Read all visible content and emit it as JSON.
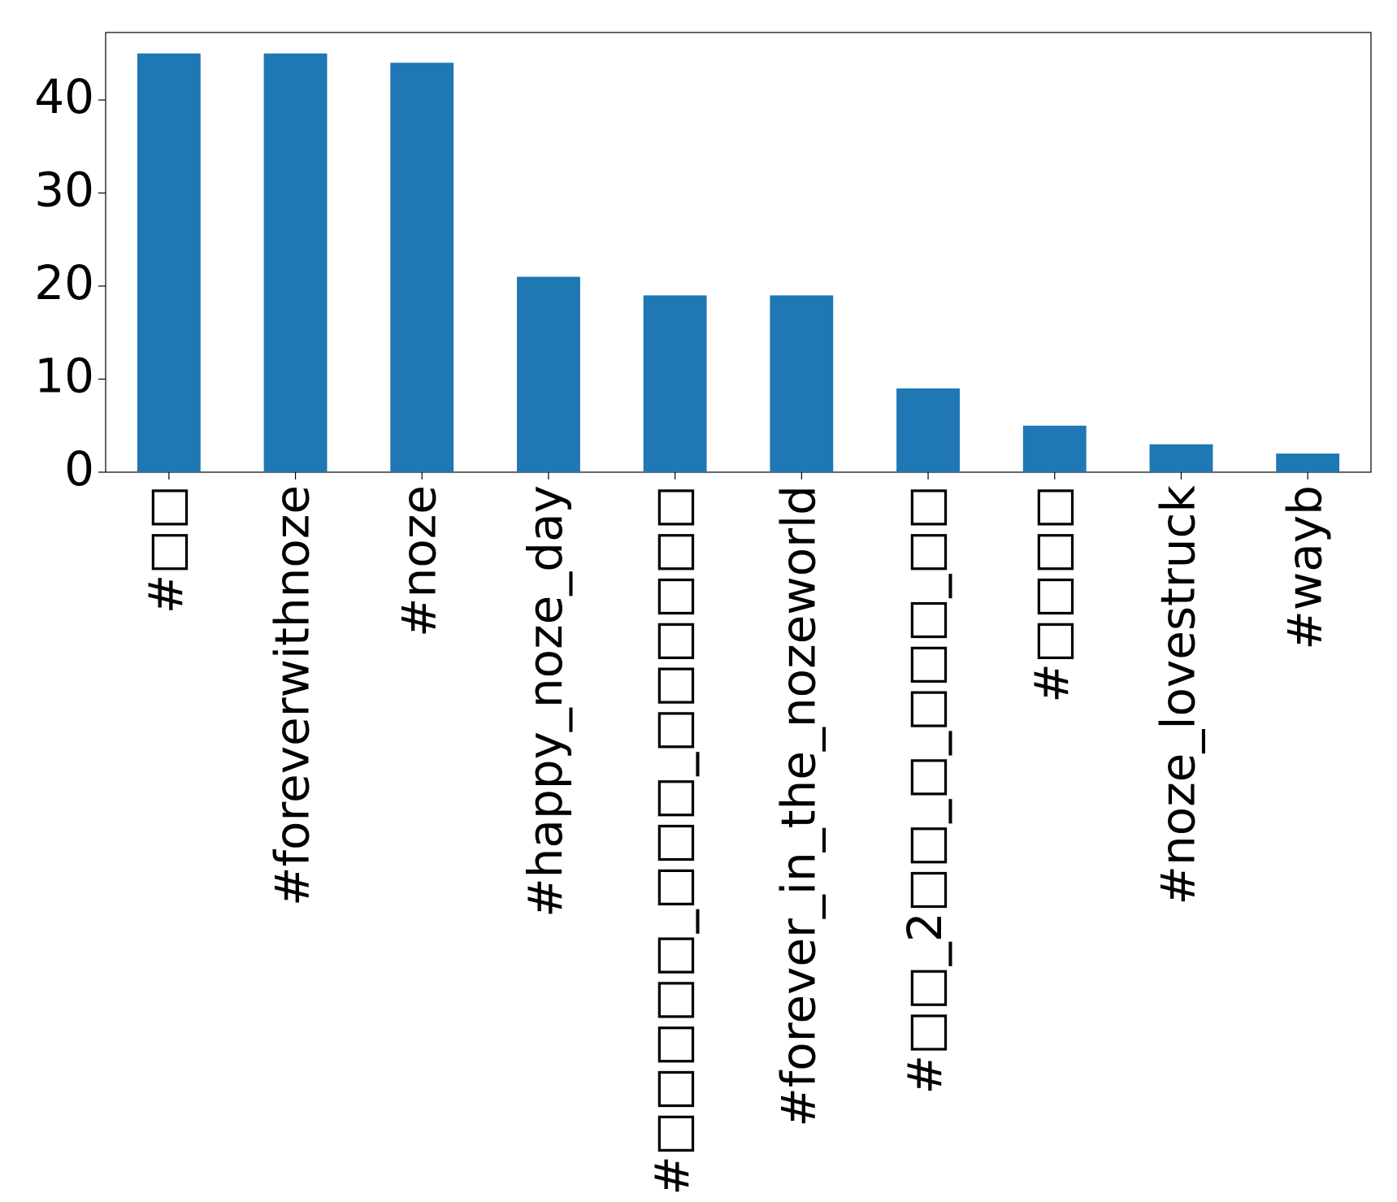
{
  "chart_data": {
    "type": "bar",
    "categories": [
      "#□□",
      "#foreverwithnoze",
      "#noze",
      "#happy_noze_day",
      "#□□□□□_□□□_□□□□□□",
      "#forever_in_the_nozeworld",
      "#□□_2□□_□_□□□_□□",
      "#□□□□",
      "#noze_lovestruck",
      "#wayb"
    ],
    "values": [
      45,
      45,
      44,
      21,
      19,
      19,
      9,
      5,
      3,
      2
    ],
    "color": "#1f77b4",
    "ylim": [
      0,
      47.25
    ],
    "yticks": [
      0,
      10,
      20,
      30,
      40
    ],
    "grid": false
  }
}
